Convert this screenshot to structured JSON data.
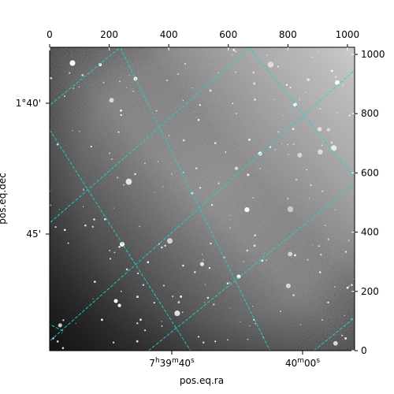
{
  "chart_data": {
    "type": "heatmap",
    "image": "grayscale astronomical star field",
    "colormap": "gray",
    "grid": "on",
    "grid_color": "#22d3d3",
    "grid_style": "dashed",
    "pixel_axes": {
      "x": {
        "range": [
          0,
          1024
        ],
        "ticks": [
          0,
          200,
          400,
          600,
          800,
          1000
        ]
      },
      "y": {
        "range": [
          0,
          1024
        ],
        "ticks": [
          0,
          200,
          400,
          600,
          800,
          1000
        ]
      }
    },
    "world_axes": {
      "xlabel": "pos.eq.ra",
      "ylabel": "pos.eq.dec",
      "ra_ticks": [
        {
          "label": "7h39m40s",
          "main": "7",
          "parts": [
            [
              "h",
              "39"
            ],
            [
              "m",
              "40"
            ],
            [
              "s",
              ""
            ]
          ]
        },
        {
          "label": "40m00s",
          "main": "40",
          "parts": [
            [
              "m",
              "00"
            ],
            [
              "s",
              ""
            ]
          ]
        }
      ],
      "dec_ticks": [
        "1°40'",
        "45'"
      ]
    }
  }
}
